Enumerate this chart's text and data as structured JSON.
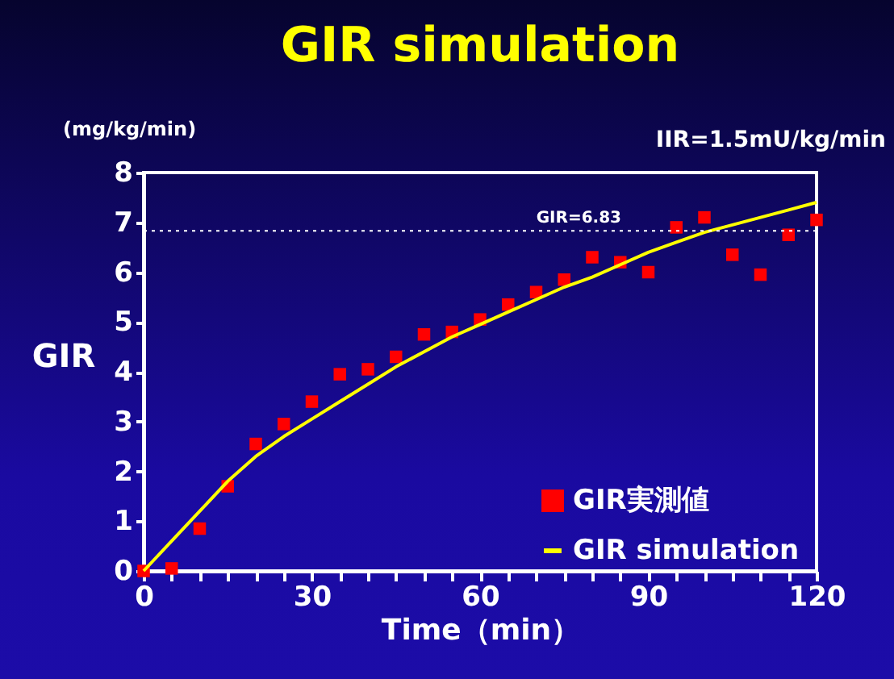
{
  "chart_data": {
    "type": "scatter",
    "title": "GIR simulation",
    "xlabel": "Time（min）",
    "ylabel": "GIR",
    "annotations": [
      "(mg/kg/min)",
      "IIR=1.5mU/kg/min"
    ],
    "x": [
      0,
      5,
      10,
      15,
      20,
      25,
      30,
      35,
      40,
      45,
      50,
      55,
      60,
      65,
      70,
      75,
      80,
      85,
      90,
      95,
      100,
      105,
      110,
      115,
      120
    ],
    "series": [
      {
        "name": "GIR実測値",
        "color": "#ff0000",
        "marker": "square",
        "values": [
          0,
          0.05,
          0.85,
          1.7,
          2.55,
          2.95,
          3.4,
          3.95,
          4.05,
          4.3,
          4.75,
          4.8,
          5.05,
          5.35,
          5.6,
          5.85,
          6.3,
          6.2,
          6.0,
          6.9,
          7.1,
          6.35,
          5.95,
          6.75,
          7.05
        ]
      },
      {
        "name": "GIR  simulation",
        "type": "line",
        "color": "#ffff00",
        "line_style": "solid",
        "values": [
          0,
          0.6,
          1.2,
          1.8,
          2.3,
          2.7,
          3.05,
          3.4,
          3.75,
          4.1,
          4.4,
          4.7,
          4.95,
          5.2,
          5.45,
          5.7,
          5.9,
          6.15,
          6.4,
          6.6,
          6.8,
          6.95,
          7.1,
          7.25,
          7.4
        ]
      }
    ],
    "xlim": [
      0,
      120
    ],
    "xticks": [
      0,
      {
        "value": 5,
        "label": null
      },
      {
        "value": 10,
        "label": null
      },
      {
        "value": 15,
        "label": null
      },
      {
        "value": 20,
        "label": null
      },
      {
        "value": 25,
        "label": null
      },
      30,
      {
        "value": 35,
        "label": null
      },
      {
        "value": 40,
        "label": null
      },
      {
        "value": 45,
        "label": null
      },
      {
        "value": 50,
        "label": null
      },
      {
        "value": 55,
        "label": null
      },
      60,
      {
        "value": 65,
        "label": null
      },
      {
        "value": 70,
        "label": null
      },
      {
        "value": 75,
        "label": null
      },
      {
        "value": 80,
        "label": null
      },
      {
        "value": 85,
        "label": null
      },
      90,
      {
        "value": 95,
        "label": null
      },
      {
        "value": 100,
        "label": null
      },
      {
        "value": 105,
        "label": null
      },
      {
        "value": 110,
        "label": null
      },
      {
        "value": 115,
        "label": null
      },
      120
    ],
    "ylim": [
      0,
      8
    ],
    "yticks": [
      0,
      1,
      2,
      3,
      4,
      5,
      6,
      7,
      8
    ],
    "ref_lines": [
      {
        "axis": "y",
        "value": 6.83,
        "label": "GIR=6.83",
        "color": "#ffffff",
        "line_style": "dotted"
      }
    ],
    "grid": false,
    "legend": "bottom right"
  }
}
